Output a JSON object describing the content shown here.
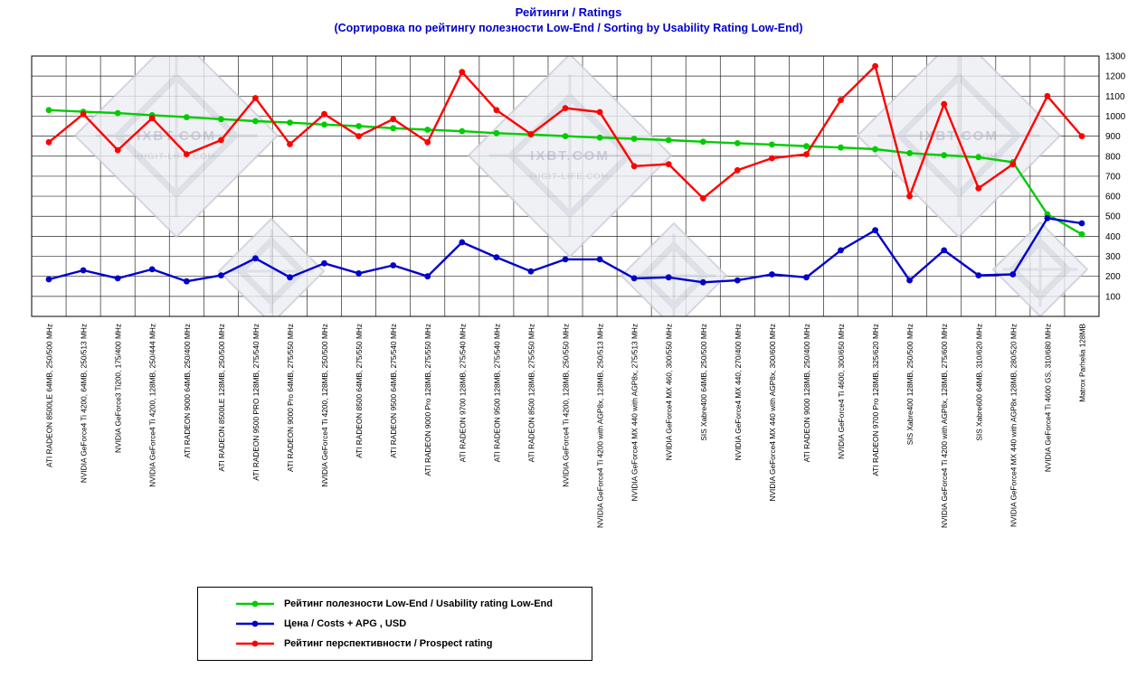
{
  "title": "Рейтинги / Ratings",
  "subtitle": "(Сортировка по рейтингу полезности Low-End / Sorting by Usability Rating Low-End)",
  "watermark": {
    "line1": "IXBT.COM",
    "line2": "DIGIT-LIFE.COM"
  },
  "chart_data": {
    "type": "line",
    "title": "Рейтинги / Ratings",
    "subtitle": "(Сортировка по рейтингу полезности Low-End / Sorting by Usability Rating Low-End)",
    "ylim": [
      0,
      1300
    ],
    "ytick_step": 100,
    "grid": true,
    "y_axis_side": "right",
    "legend_position": "bottom-left",
    "categories": [
      "ATI RADEON 8500LE 64MB, 250/500 MHz",
      "NVIDIA GeForce4 Ti 4200, 64MB, 250/513 MHz",
      "NVIDIA GeForce3 Ti200, 175/400 MHz",
      "NVIDIA GeForce4 Ti 4200, 128MB, 250/444 MHz",
      "ATI RADEON 9000 64MB, 250/400 MHz",
      "ATI RADEON 8500LE 128MB, 250/500 MHz",
      "ATI RADEON 9500 PRO 128MB, 275/540 MHz",
      "ATI RADEON 9000 Pro 64MB, 275/550 MHz",
      "NVIDIA GeForce4 Ti 4200, 128MB, 250/500 MHz",
      "ATI RADEON 8500 64MB, 275/550 MHz",
      "ATI RADEON 9500 64MB, 275/540 MHz",
      "ATI RADEON 9000 Pro 128MB, 275/550 MHz",
      "ATI RADEON 9700 128MB, 275/540 MHz",
      "ATI RADEON 9500 128MB, 275/540 MHz",
      "ATI RADEON 8500 128MB, 275/550 MHz",
      "NVIDIA GeForce4 Ti 4200, 128MB, 250/550 MHz",
      "NVIDIA GeForce4 Ti 4200 with AGP8x, 128MB, 250/513 MHz",
      "NVIDIA GeForce4 MX 440 with AGP8x, 275/513 MHz",
      "NVIDIA GeForce4 MX 460, 300/550 MHz",
      "SIS Xabre400 64MB, 250/500 MHz",
      "NVIDIA GeForce4 MX 440, 270/400 MHz",
      "NVIDIA GeForce4 MX 440 with AGP8x, 300/600 MHz",
      "ATI RADEON 9000 128MB, 250/400 MHz",
      "NVIDIA GeForce4 Ti 4600, 300/650 MHz",
      "ATI RADEON 9700 Pro 128MB, 325/620 MHz",
      "SIS Xabre400 128MB, 250/500 MHz",
      "NVIDIA GeForce4 Ti 4200 with AGP8x, 128MB, 275/600 MHz",
      "SIS Xabre600 64MB, 310/620 MHz",
      "NVIDIA GeForce4 MX 440 with AGP8x 128MB, 280/520 MHz",
      "NVIDIA GeForce4 Ti 4600 GS, 310/680 MHz",
      "Matrox Parhelia 128MB"
    ],
    "series": [
      {
        "name": "Рейтинг полезности Low-End / Usability rating Low-End",
        "color": "#00CC00",
        "values": [
          1030,
          1022,
          1015,
          1005,
          995,
          985,
          975,
          968,
          958,
          950,
          940,
          932,
          925,
          915,
          908,
          900,
          893,
          887,
          880,
          872,
          865,
          858,
          850,
          843,
          835,
          815,
          805,
          795,
          770,
          510,
          410
        ]
      },
      {
        "name": "Цена / Costs + APG , USD",
        "color": "#0000CC",
        "values": [
          185,
          230,
          190,
          235,
          175,
          205,
          290,
          195,
          265,
          215,
          255,
          200,
          370,
          295,
          225,
          285,
          285,
          190,
          195,
          170,
          180,
          210,
          195,
          330,
          430,
          180,
          330,
          205,
          210,
          490,
          465
        ]
      },
      {
        "name": "Рейтинг перспективности / Prospect rating",
        "color": "#FF0000",
        "values": [
          870,
          1010,
          830,
          990,
          810,
          880,
          1090,
          860,
          1010,
          900,
          985,
          870,
          1220,
          1030,
          910,
          1040,
          1020,
          750,
          760,
          590,
          730,
          790,
          810,
          1080,
          1250,
          600,
          1060,
          640,
          760,
          1100,
          900
        ]
      }
    ]
  }
}
